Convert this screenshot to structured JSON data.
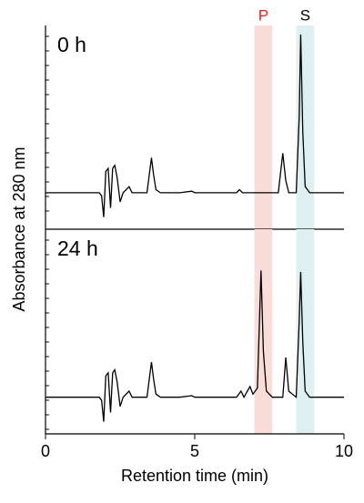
{
  "chart_data": [
    {
      "type": "line",
      "label": "0 h",
      "ylabel": "Absorbance at 280 nm",
      "xlim": [
        0,
        10
      ],
      "ylim": [
        -1.2,
        5.5
      ],
      "color": "#000000",
      "bands": [
        {
          "label": "P",
          "range": [
            7.0,
            7.6
          ],
          "color": "#fadcd9",
          "label_color": "#e8231f"
        },
        {
          "label": "S",
          "range": [
            8.4,
            9.0
          ],
          "color": "#def0f1",
          "label_color": "#000000"
        }
      ],
      "x": [
        0,
        1.8,
        1.88,
        1.95,
        2.02,
        2.1,
        2.18,
        2.25,
        2.32,
        2.4,
        2.5,
        2.6,
        2.8,
        2.9,
        3.4,
        3.55,
        3.62,
        3.7,
        3.85,
        4.5,
        4.9,
        5.0,
        6.4,
        6.5,
        6.6,
        7.8,
        7.95,
        8.05,
        8.15,
        8.4,
        8.5,
        8.55,
        8.62,
        8.7,
        8.85,
        10
      ],
      "values": [
        0,
        0,
        -0.1,
        -0.8,
        0.7,
        0.8,
        -0.5,
        0.8,
        0.9,
        0.5,
        -0.3,
        0,
        0.2,
        0,
        0,
        1.15,
        0.6,
        0.1,
        0,
        0,
        0.05,
        0,
        0,
        0.1,
        0,
        0,
        1.3,
        0.4,
        0,
        0,
        2.5,
        5.2,
        2,
        0.2,
        0,
        0
      ]
    },
    {
      "type": "line",
      "label": "24 h",
      "xlabel": "Retention time (min)",
      "xlim": [
        0,
        10
      ],
      "xticks": [
        0,
        5,
        10
      ],
      "ylim": [
        -1.2,
        5.5
      ],
      "color": "#000000",
      "x": [
        0,
        1.8,
        1.88,
        1.95,
        2.02,
        2.1,
        2.18,
        2.25,
        2.32,
        2.4,
        2.5,
        2.6,
        2.8,
        2.9,
        3.4,
        3.55,
        3.62,
        3.7,
        3.85,
        4.5,
        4.9,
        5.0,
        6.4,
        6.55,
        6.65,
        6.85,
        6.95,
        7.1,
        7.22,
        7.3,
        7.4,
        7.6,
        7.95,
        8.05,
        8.15,
        8.4,
        8.5,
        8.55,
        8.62,
        8.7,
        8.85,
        10
      ],
      "values": [
        0,
        0,
        -0.1,
        -0.8,
        0.7,
        0.8,
        -0.5,
        0.8,
        0.9,
        0.5,
        -0.3,
        0,
        0.2,
        0,
        0,
        1.15,
        0.6,
        0.1,
        0,
        0,
        0.05,
        0,
        0,
        0.2,
        0,
        0.35,
        0.1,
        0.3,
        4.15,
        1.5,
        0.2,
        0,
        0,
        1.3,
        0.2,
        0,
        2.5,
        4.1,
        1.8,
        0.2,
        0,
        0
      ]
    }
  ]
}
